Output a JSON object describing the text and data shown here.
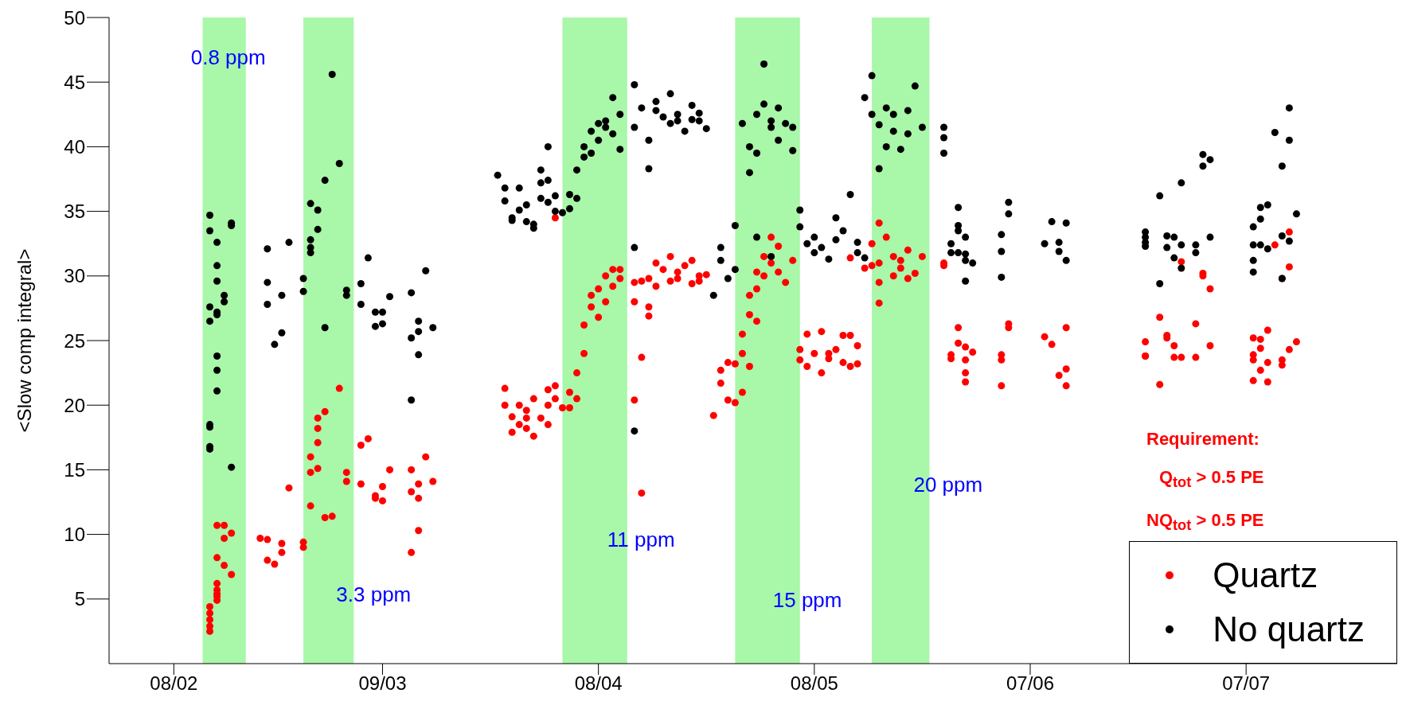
{
  "chart_data": {
    "type": "scatter",
    "ylabel": "<Slow comp integral>",
    "xlim": [
      "--01-30",
      "--07-28"
    ],
    "xticks": [
      {
        "value": "--02-08",
        "label": "08/02"
      },
      {
        "value": "--03-09",
        "label": "09/03"
      },
      {
        "value": "--04-08",
        "label": "08/04"
      },
      {
        "value": "--05-08",
        "label": "08/05"
      },
      {
        "value": "--06-07",
        "label": "07/06"
      },
      {
        "value": "--07-07",
        "label": "07/07"
      }
    ],
    "ylim": [
      0,
      50
    ],
    "yticks": [
      5,
      10,
      15,
      20,
      25,
      30,
      35,
      40,
      45,
      50
    ],
    "legend": "bottom right",
    "marker": "circle",
    "bands": [
      {
        "axis": "x",
        "from": "--02-12",
        "to": "--02-18",
        "label": "0.8 ppm",
        "color": "#a9f7a9"
      },
      {
        "axis": "x",
        "from": "--02-26",
        "to": "--03-05",
        "label": "3.3 ppm",
        "color": "#a9f7a9"
      },
      {
        "axis": "x",
        "from": "--04-03",
        "to": "--04-12",
        "label": "11 ppm",
        "color": "#a9f7a9"
      },
      {
        "axis": "x",
        "from": "--04-27",
        "to": "--05-06",
        "label": "15 ppm",
        "color": "#a9f7a9"
      },
      {
        "axis": "x",
        "from": "--05-16",
        "to": "--05-24",
        "label": "20 ppm",
        "color": "#a9f7a9"
      }
    ],
    "annotations": [
      "Requirement:",
      "Q$_{tot}$ > 0.5 PE",
      "NQ$_{tot}$ > 0.5 PE"
    ],
    "series": [
      {
        "name": "Quartz",
        "color": "#ff0000",
        "x": [
          "--02-13",
          "--02-13",
          "--02-13",
          "--02-13",
          "--02-13",
          "--02-14",
          "--02-14",
          "--02-14",
          "--02-14",
          "--02-14",
          "--02-16",
          "--02-15",
          "--02-14",
          "--02-15",
          "--02-16",
          "--02-14",
          "--02-15",
          "--02-20",
          "--02-21",
          "--02-21",
          "--02-22",
          "--02-23",
          "--02-23",
          "--02-24",
          "--02-26",
          "--02-26",
          "--02-27",
          "--02-27",
          "--02-28",
          "--02-27",
          "--02-28",
          "--02-28",
          "--02-28",
          "--03-01",
          "--03-03",
          "--03-01",
          "--03-02",
          "--03-04",
          "--03-04",
          "--03-06",
          "--03-07",
          "--03-06",
          "--03-08",
          "--03-08",
          "--03-09",
          "--03-09",
          "--03-10",
          "--03-13",
          "--03-13",
          "--03-14",
          "--03-14",
          "--03-15",
          "--03-14",
          "--03-13",
          "--03-16",
          "--03-26",
          "--03-26",
          "--03-27",
          "--03-27",
          "--03-28",
          "--03-28",
          "--03-29",
          "--03-29",
          "--03-29",
          "--03-30",
          "--03-30",
          "--03-31",
          "--04-01",
          "--04-01",
          "--04-01",
          "--04-02",
          "--04-02",
          "--04-03",
          "--04-02",
          "--04-04",
          "--04-04",
          "--04-05",
          "--04-05",
          "--04-06",
          "--04-06",
          "--04-07",
          "--04-07",
          "--04-08",
          "--04-08",
          "--04-09",
          "--04-09",
          "--04-10",
          "--04-10",
          "--04-11",
          "--04-11",
          "--04-13",
          "--04-13",
          "--04-14",
          "--04-13",
          "--04-14",
          "--04-15",
          "--04-14",
          "--04-15",
          "--04-15",
          "--04-16",
          "--04-16",
          "--04-17",
          "--04-18",
          "--04-18",
          "--04-19",
          "--04-19",
          "--04-20",
          "--04-21",
          "--04-21",
          "--04-22",
          "--04-22",
          "--04-23",
          "--04-24",
          "--04-25",
          "--04-25",
          "--04-26",
          "--04-27",
          "--04-26",
          "--04-27",
          "--04-28",
          "--04-28",
          "--04-28",
          "--04-29",
          "--04-29",
          "--04-30",
          "--04-30",
          "--05-01",
          "--05-01",
          "--05-02",
          "--05-02",
          "--05-03",
          "--05-03",
          "--05-04",
          "--05-05",
          "--04-30",
          "--04-29",
          "--05-06",
          "--05-06",
          "--05-07",
          "--05-07",
          "--05-08",
          "--05-09",
          "--05-09",
          "--05-10",
          "--05-10",
          "--05-11",
          "--05-12",
          "--05-12",
          "--05-13",
          "--05-13",
          "--05-14",
          "--05-14",
          "--05-13",
          "--05-15",
          "--05-16",
          "--05-16",
          "--05-17",
          "--05-17",
          "--05-18",
          "--05-19",
          "--05-19",
          "--05-20",
          "--05-20",
          "--05-21",
          "--05-21",
          "--05-22",
          "--05-23",
          "--05-17",
          "--05-17",
          "--05-26",
          "--05-26",
          "--05-28",
          "--05-28",
          "--05-29",
          "--05-30",
          "--05-27",
          "--05-27",
          "--05-29",
          "--05-29",
          "--05-29",
          "--06-04",
          "--06-04",
          "--06-03",
          "--06-03",
          "--06-03",
          "--06-09",
          "--06-10",
          "--06-12",
          "--06-12",
          "--06-11",
          "--06-12",
          "--06-25",
          "--06-23",
          "--06-23",
          "--06-23",
          "--06-26",
          "--06-26",
          "--06-27",
          "--06-27",
          "--06-28",
          "--06-30",
          "--06-30",
          "--06-25",
          "--07-02",
          "--06-28",
          "--07-01",
          "--07-01",
          "--07-02",
          "--07-08",
          "--07-10",
          "--07-08",
          "--07-09",
          "--07-10",
          "--07-08",
          "--07-08",
          "--07-09",
          "--07-09",
          "--07-10",
          "--07-12",
          "--07-12",
          "--07-13",
          "--07-14",
          "--07-11",
          "--07-13",
          "--07-13",
          "--07-12"
        ],
        "values": [
          2.5,
          2.9,
          3.4,
          3.9,
          4.4,
          4.9,
          5.4,
          5.7,
          5.2,
          6.2,
          6.9,
          7.6,
          8.2,
          9.7,
          10.1,
          10.7,
          10.7,
          9.7,
          9.6,
          8.0,
          7.7,
          9.3,
          8.6,
          13.6,
          9.0,
          9.4,
          12.2,
          14.8,
          15.1,
          16.0,
          17.1,
          18.2,
          19.0,
          19.5,
          21.3,
          11.3,
          11.4,
          14.1,
          14.8,
          16.9,
          17.4,
          13.9,
          12.8,
          13.0,
          12.6,
          13.7,
          15.0,
          15.0,
          13.3,
          13.9,
          12.8,
          16.0,
          10.3,
          8.6,
          14.1,
          21.3,
          20.0,
          17.9,
          19.1,
          18.5,
          20.0,
          19.0,
          18.2,
          19.6,
          17.6,
          20.5,
          19.0,
          18.5,
          21.2,
          20.0,
          21.5,
          20.5,
          19.8,
          34.5,
          19.8,
          21.0,
          22.5,
          20.5,
          24.0,
          26.2,
          27.6,
          28.5,
          26.8,
          29.0,
          28.0,
          30.0,
          29.2,
          30.5,
          29.8,
          30.5,
          29.5,
          28.0,
          23.7,
          20.4,
          13.2,
          26.9,
          29.6,
          27.6,
          29.8,
          31.0,
          29.2,
          30.5,
          29.6,
          31.5,
          30.3,
          29.8,
          30.8,
          29.4,
          31.2,
          30.0,
          29.6,
          30.1,
          19.2,
          22.7,
          21.7,
          20.4,
          20.2,
          23.3,
          23.2,
          21.0,
          24.0,
          25.5,
          27.0,
          28.5,
          29.0,
          30.3,
          31.5,
          30.0,
          33.0,
          31.0,
          32.3,
          30.3,
          29.5,
          31.2,
          26.5,
          23.0,
          24.3,
          23.5,
          25.5,
          23.0,
          24.0,
          22.5,
          25.7,
          23.6,
          24.0,
          24.3,
          25.4,
          23.3,
          25.4,
          23.0,
          24.6,
          23.2,
          31.4,
          30.6,
          32.5,
          30.8,
          29.5,
          31.0,
          33.0,
          30.0,
          31.5,
          30.6,
          31.2,
          29.8,
          32.0,
          30.2,
          31.5,
          34.1,
          27.9,
          31.0,
          30.8,
          26.0,
          24.8,
          24.5,
          24.1,
          23.6,
          23.9,
          23.5,
          22.5,
          21.8,
          26.3,
          26.0,
          23.9,
          23.5,
          21.5,
          25.3,
          24.7,
          26.0,
          22.8,
          22.3,
          21.5,
          26.8,
          24.9,
          23.8,
          23.8,
          25.4,
          25.2,
          24.6,
          23.7,
          23.7,
          23.7,
          26.3,
          21.6,
          24.6,
          31.1,
          30.2,
          30.0,
          29.0,
          21.9,
          21.8,
          25.2,
          25.1,
          25.8,
          23.9,
          23.5,
          24.4,
          22.7,
          23.3,
          23.5,
          23.1,
          24.3,
          24.9,
          32.4,
          33.4,
          30.7,
          29.8
        ]
      },
      {
        "name": "No quartz",
        "color": "#000000",
        "x": [
          "--02-13",
          "--02-13",
          "--02-14",
          "--02-14",
          "--02-14",
          "--02-15",
          "--02-13",
          "--02-14",
          "--02-14",
          "--02-13",
          "--02-15",
          "--02-16",
          "--02-16",
          "--02-14",
          "--02-14",
          "--02-14",
          "--02-13",
          "--02-13",
          "--02-13",
          "--02-13",
          "--02-16",
          "--02-21",
          "--02-24",
          "--02-21",
          "--02-21",
          "--02-23",
          "--02-23",
          "--02-22",
          "--02-26",
          "--02-26",
          "--02-27",
          "--02-27",
          "--02-27",
          "--02-28",
          "--02-27",
          "--02-28",
          "--03-01",
          "--03-03",
          "--03-02",
          "--03-01",
          "--03-04",
          "--03-04",
          "--03-06",
          "--03-07",
          "--03-06",
          "--03-08",
          "--03-08",
          "--03-09",
          "--03-09",
          "--03-10",
          "--03-13",
          "--03-14",
          "--03-14",
          "--03-13",
          "--03-14",
          "--03-13",
          "--03-15",
          "--03-16",
          "--03-25",
          "--03-26",
          "--03-26",
          "--03-27",
          "--03-27",
          "--03-28",
          "--03-28",
          "--03-29",
          "--03-29",
          "--03-30",
          "--03-30",
          "--03-31",
          "--03-31",
          "--03-31",
          "--04-01",
          "--04-01",
          "--04-01",
          "--04-02",
          "--04-02",
          "--04-03",
          "--04-04",
          "--04-04",
          "--04-05",
          "--04-05",
          "--04-06",
          "--04-06",
          "--04-07",
          "--04-07",
          "--04-08",
          "--04-08",
          "--04-09",
          "--04-09",
          "--04-10",
          "--04-10",
          "--04-11",
          "--04-11",
          "--04-13",
          "--04-13",
          "--04-13",
          "--04-13",
          "--04-14",
          "--04-15",
          "--04-15",
          "--04-16",
          "--04-16",
          "--04-17",
          "--04-18",
          "--04-18",
          "--04-19",
          "--04-19",
          "--04-20",
          "--04-21",
          "--04-21",
          "--04-22",
          "--04-22",
          "--04-23",
          "--04-24",
          "--04-25",
          "--04-25",
          "--04-26",
          "--04-27",
          "--04-27",
          "--04-28",
          "--04-29",
          "--04-29",
          "--04-30",
          "--04-30",
          "--05-01",
          "--05-01",
          "--05-02",
          "--05-02",
          "--05-03",
          "--05-03",
          "--05-04",
          "--05-05",
          "--05-05",
          "--04-30",
          "--05-02",
          "--05-06",
          "--05-06",
          "--05-07",
          "--05-08",
          "--05-08",
          "--05-09",
          "--05-10",
          "--05-11",
          "--05-11",
          "--05-12",
          "--05-13",
          "--05-14",
          "--05-14",
          "--05-15",
          "--05-15",
          "--05-16",
          "--05-16",
          "--05-17",
          "--05-17",
          "--05-18",
          "--05-19",
          "--05-19",
          "--05-20",
          "--05-21",
          "--05-21",
          "--05-22",
          "--05-23",
          "--05-18",
          "--05-26",
          "--05-26",
          "--05-26",
          "--05-28",
          "--05-28",
          "--05-28",
          "--05-29",
          "--05-27",
          "--05-27",
          "--05-28",
          "--05-29",
          "--05-29",
          "--05-30",
          "--05-29",
          "--06-04",
          "--06-04",
          "--06-03",
          "--06-03",
          "--06-03",
          "--06-10",
          "--06-12",
          "--06-09",
          "--06-11",
          "--06-11",
          "--06-12",
          "--06-25",
          "--06-28",
          "--07-01",
          "--07-01",
          "--07-02",
          "--06-23",
          "--06-23",
          "--06-23",
          "--06-23",
          "--06-26",
          "--06-27",
          "--06-26",
          "--06-27",
          "--06-28",
          "--06-30",
          "--06-30",
          "--06-28",
          "--06-25",
          "--07-02",
          "--07-13",
          "--07-11",
          "--07-13",
          "--07-12",
          "--07-09",
          "--07-10",
          "--07-09",
          "--07-08",
          "--07-08",
          "--07-09",
          "--07-10",
          "--07-12",
          "--07-13",
          "--07-14",
          "--07-08",
          "--07-08",
          "--07-12"
        ],
        "values": [
          34.7,
          33.5,
          32.6,
          30.8,
          29.6,
          28.5,
          27.6,
          27.2,
          27.0,
          26.5,
          28.0,
          33.9,
          34.1,
          23.8,
          22.7,
          21.1,
          18.5,
          18.3,
          16.8,
          16.6,
          15.2,
          32.1,
          32.6,
          29.5,
          27.8,
          28.5,
          25.6,
          24.7,
          29.8,
          28.8,
          31.8,
          32.2,
          32.8,
          33.6,
          35.6,
          35.1,
          37.4,
          38.7,
          45.6,
          26.0,
          28.5,
          28.9,
          29.4,
          31.4,
          27.8,
          26.1,
          27.2,
          26.3,
          27.2,
          28.4,
          28.7,
          26.5,
          25.7,
          25.2,
          23.9,
          20.4,
          30.4,
          26.0,
          37.8,
          36.8,
          35.8,
          34.5,
          34.3,
          35.1,
          36.8,
          35.5,
          34.2,
          33.7,
          34.0,
          36.0,
          37.2,
          38.2,
          35.7,
          37.4,
          40.0,
          36.2,
          35.0,
          34.9,
          35.2,
          36.3,
          38.2,
          36.0,
          39.2,
          40.0,
          41.2,
          39.5,
          41.8,
          40.5,
          41.5,
          42.0,
          41.0,
          43.8,
          42.5,
          39.8,
          41.5,
          32.2,
          18.0,
          44.8,
          43.0,
          38.3,
          40.5,
          42.8,
          43.5,
          42.3,
          41.8,
          44.1,
          42.5,
          42.0,
          41.2,
          43.2,
          42.1,
          42.6,
          42.0,
          41.4,
          28.5,
          32.2,
          31.2,
          29.8,
          33.9,
          30.5,
          41.8,
          40.0,
          38.0,
          39.5,
          42.5,
          43.3,
          46.4,
          42.0,
          41.5,
          43.0,
          40.5,
          41.8,
          39.7,
          41.5,
          33.0,
          31.5,
          33.8,
          35.1,
          32.5,
          31.8,
          33.0,
          32.2,
          31.3,
          34.5,
          32.8,
          33.5,
          36.3,
          31.8,
          32.6,
          31.4,
          43.8,
          42.5,
          45.5,
          38.3,
          41.7,
          43.0,
          41.2,
          42.5,
          39.8,
          42.8,
          41.0,
          44.7,
          41.5,
          40.0,
          41.5,
          40.7,
          39.5,
          35.3,
          33.9,
          33.5,
          33.0,
          32.5,
          31.8,
          31.8,
          31.7,
          31.2,
          31.0,
          29.6,
          35.7,
          34.8,
          33.2,
          31.9,
          29.9,
          34.2,
          34.1,
          32.5,
          32.6,
          31.9,
          31.2,
          36.2,
          37.2,
          38.5,
          39.4,
          39.0,
          33.4,
          33.0,
          32.6,
          32.3,
          33.1,
          33.0,
          32.2,
          31.4,
          32.4,
          32.4,
          31.8,
          30.6,
          29.4,
          33.0,
          43.0,
          41.1,
          40.5,
          38.5,
          35.3,
          35.5,
          34.4,
          33.8,
          32.4,
          32.4,
          32.1,
          33.1,
          32.7,
          34.8,
          31.2,
          30.3,
          29.8
        ]
      }
    ]
  }
}
